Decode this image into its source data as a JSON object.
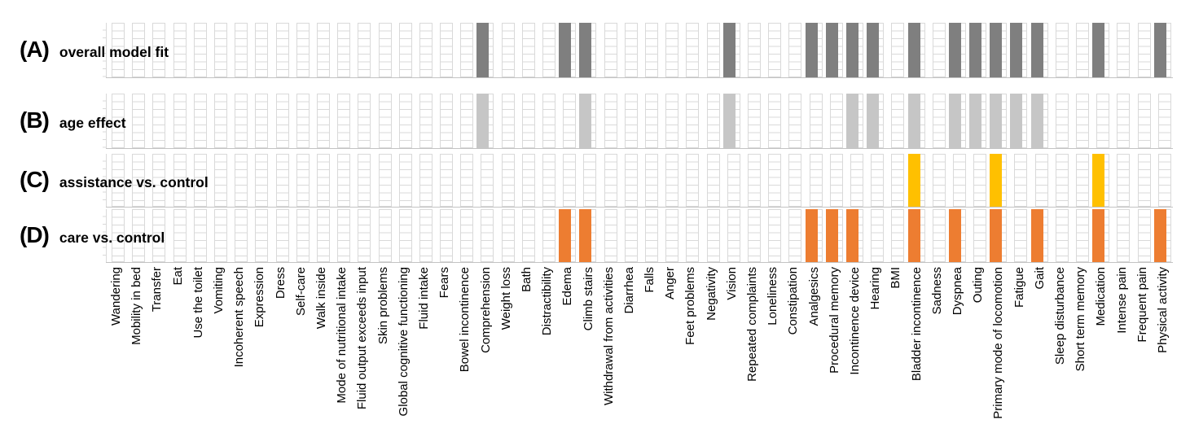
{
  "figure_title": "",
  "row_labels": [
    {
      "prefix": "(A)",
      "label": "overall model fit"
    },
    {
      "prefix": "(B)",
      "label": "age effect"
    },
    {
      "prefix": "(C)",
      "label": "assistance vs. control"
    },
    {
      "prefix": "(D)",
      "label": "care vs. control"
    }
  ],
  "colors": {
    "overall_model_fit": "#7f7f7f",
    "age_effect": "#c6c6c6",
    "assistance_vs_control": "#ffc000",
    "care_vs_control": "#ed7d31",
    "ladder_outline": "#d9d9d9",
    "baseline": "#c3c3c3"
  },
  "chart_data": {
    "type": "heatmap",
    "description": "Binary presence matrix: 4 analysis rows x 52 clinical items; a solid colored bar marks items significant/selected in that analysis, empty segmented outline bars mark the remaining items.",
    "legend_position": "none",
    "grid": "off",
    "categories": [
      "Wandering",
      "Mobility in bed",
      "Transfer",
      "Eat",
      "Use the toilet",
      "Vomiting",
      "Incoherent speech",
      "Expression",
      "Dress",
      "Self-care",
      "Walk inside",
      "Mode of nutritional intake",
      "Fluid output exceeds input",
      "Skin problems",
      "Global cognitive functioning",
      "Fluid intake",
      "Fears",
      "Bowel incontinence",
      "Comprehension",
      "Weight loss",
      "Bath",
      "Distractibility",
      "Edema",
      "Climb stairs",
      "Withdrawal from activities",
      "Diarrhea",
      "Falls",
      "Anger",
      "Feet problems",
      "Negativity",
      "Vision",
      "Repeated complaints",
      "Loneliness",
      "Constipation",
      "Analgesics",
      "Procedural memory",
      "Incontinence device",
      "Hearing",
      "BMI",
      "Bladder incontinence",
      "Sadness",
      "Dyspnea",
      "Outing",
      "Primary mode of locomotion",
      "Fatigue",
      "Gait",
      "Sleep disturbance",
      "Short term memory",
      "Medication",
      "Intense pain",
      "Frequent pain",
      "Physical activity"
    ],
    "series": [
      {
        "id": "A",
        "name": "(A) overall model fit",
        "color": "#7f7f7f",
        "filled": [
          "Comprehension",
          "Edema",
          "Climb stairs",
          "Vision",
          "Analgesics",
          "Procedural memory",
          "Incontinence device",
          "Hearing",
          "Bladder incontinence",
          "Dyspnea",
          "Outing",
          "Primary mode of locomotion",
          "Fatigue",
          "Gait",
          "Medication",
          "Physical activity"
        ]
      },
      {
        "id": "B",
        "name": "(B) age effect",
        "color": "#c6c6c6",
        "filled": [
          "Comprehension",
          "Climb stairs",
          "Vision",
          "Incontinence device",
          "Hearing",
          "Bladder incontinence",
          "Dyspnea",
          "Outing",
          "Primary mode of locomotion",
          "Fatigue",
          "Gait"
        ]
      },
      {
        "id": "C",
        "name": "(C) assistance vs. control",
        "color": "#ffc000",
        "filled": [
          "Bladder incontinence",
          "Primary mode of locomotion",
          "Medication"
        ]
      },
      {
        "id": "D",
        "name": "(D) care vs. control",
        "color": "#ed7d31",
        "filled": [
          "Edema",
          "Climb stairs",
          "Analgesics",
          "Procedural memory",
          "Incontinence device",
          "Bladder incontinence",
          "Dyspnea",
          "Primary mode of locomotion",
          "Gait",
          "Medication",
          "Physical activity"
        ]
      }
    ]
  }
}
